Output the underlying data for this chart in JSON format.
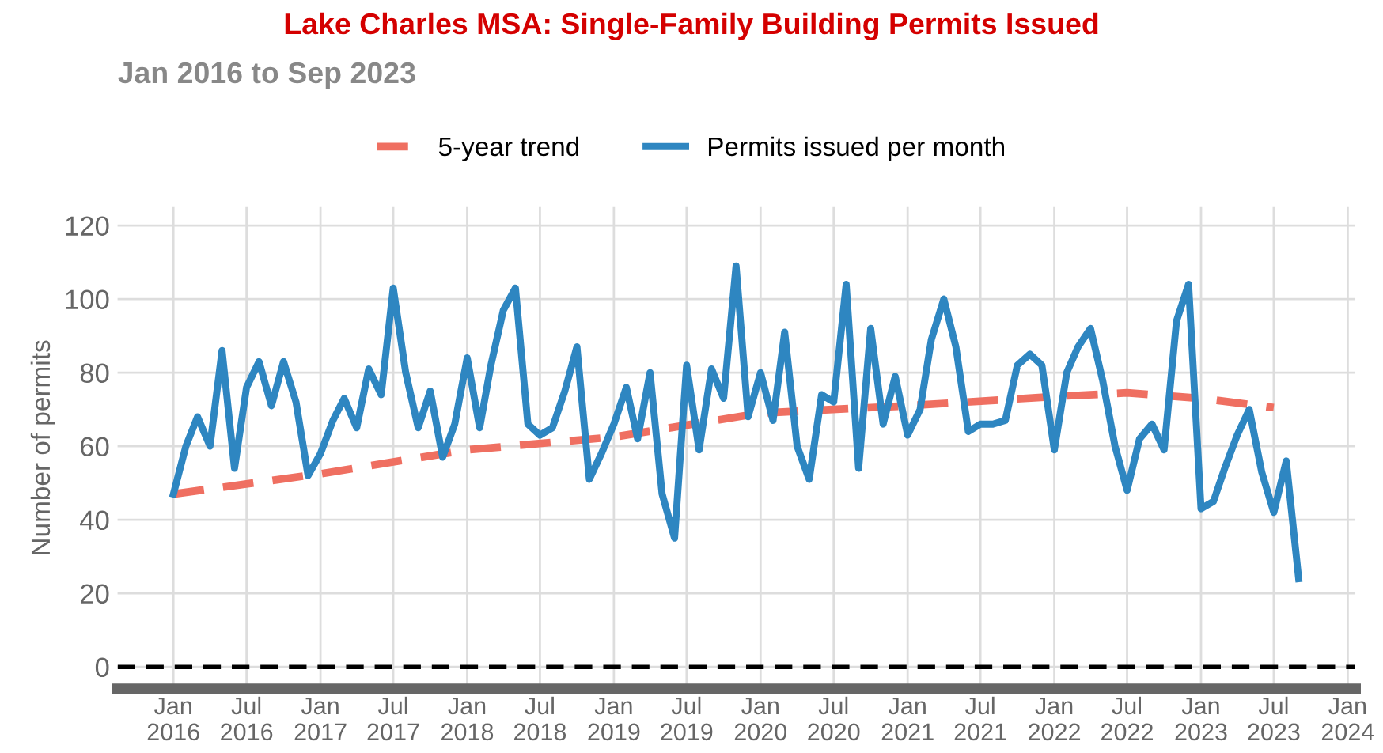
{
  "chart_data": {
    "type": "line",
    "title": "Lake Charles MSA: Single-Family Building Permits Issued",
    "subtitle": "Jan 2016 to Sep 2023",
    "ylabel": "Number of permits",
    "series": [
      {
        "name": "5-year trend",
        "color": "#ef6f61",
        "line_style": "dashed",
        "x": [
          "2016-01",
          "2017-01",
          "2018-01",
          "2019-01",
          "2020-01",
          "2021-01",
          "2022-01",
          "2022-07",
          "2023-01",
          "2023-07"
        ],
        "values": [
          47,
          52.5,
          59,
          62.5,
          69,
          71,
          73.5,
          74.5,
          73,
          70.5
        ]
      },
      {
        "name": "Permits issued per month",
        "color": "#2e86c1",
        "line_style": "solid",
        "x": [
          "2016-01",
          "2016-02",
          "2016-03",
          "2016-04",
          "2016-05",
          "2016-06",
          "2016-07",
          "2016-08",
          "2016-09",
          "2016-10",
          "2016-11",
          "2016-12",
          "2017-01",
          "2017-02",
          "2017-03",
          "2017-04",
          "2017-05",
          "2017-06",
          "2017-07",
          "2017-08",
          "2017-09",
          "2017-10",
          "2017-11",
          "2017-12",
          "2018-01",
          "2018-02",
          "2018-03",
          "2018-04",
          "2018-05",
          "2018-06",
          "2018-07",
          "2018-08",
          "2018-09",
          "2018-10",
          "2018-11",
          "2018-12",
          "2019-01",
          "2019-02",
          "2019-03",
          "2019-04",
          "2019-05",
          "2019-06",
          "2019-07",
          "2019-08",
          "2019-09",
          "2019-10",
          "2019-11",
          "2019-12",
          "2020-01",
          "2020-02",
          "2020-03",
          "2020-04",
          "2020-05",
          "2020-06",
          "2020-07",
          "2020-08",
          "2020-09",
          "2020-10",
          "2020-11",
          "2020-12",
          "2021-01",
          "2021-02",
          "2021-03",
          "2021-04",
          "2021-05",
          "2021-06",
          "2021-07",
          "2021-08",
          "2021-09",
          "2021-10",
          "2021-11",
          "2021-12",
          "2022-01",
          "2022-02",
          "2022-03",
          "2022-04",
          "2022-05",
          "2022-06",
          "2022-07",
          "2022-08",
          "2022-09",
          "2022-10",
          "2022-11",
          "2022-12",
          "2023-01",
          "2023-02",
          "2023-03",
          "2023-04",
          "2023-05",
          "2023-06",
          "2023-07",
          "2023-08",
          "2023-09"
        ],
        "values": [
          47,
          60,
          68,
          60,
          86,
          54,
          76,
          83,
          71,
          83,
          72,
          52,
          58,
          67,
          73,
          65,
          81,
          74,
          103,
          80,
          65,
          75,
          57,
          66,
          84,
          65,
          82,
          97,
          103,
          66,
          63,
          65,
          75,
          87,
          51,
          58,
          66,
          76,
          62,
          80,
          47,
          35,
          82,
          59,
          81,
          73,
          109,
          68,
          80,
          67,
          91,
          60,
          51,
          74,
          72,
          104,
          54,
          92,
          66,
          79,
          63,
          70,
          89,
          100,
          87,
          64,
          66,
          66,
          67,
          82,
          85,
          82,
          59,
          80,
          87,
          92,
          78,
          60,
          48,
          62,
          66,
          59,
          94,
          104,
          43,
          45,
          54,
          63,
          70,
          53,
          42,
          56,
          24
        ]
      }
    ],
    "xlim": [
      "2015-08-15",
      "2024-01-20"
    ],
    "ylim": [
      -6,
      125
    ],
    "xticks": [
      {
        "value": "2016-01",
        "label": "Jan\n2016"
      },
      {
        "value": "2016-07",
        "label": "Jul\n2016"
      },
      {
        "value": "2017-01",
        "label": "Jan\n2017"
      },
      {
        "value": "2017-07",
        "label": "Jul\n2017"
      },
      {
        "value": "2018-01",
        "label": "Jan\n2018"
      },
      {
        "value": "2018-07",
        "label": "Jul\n2018"
      },
      {
        "value": "2019-01",
        "label": "Jan\n2019"
      },
      {
        "value": "2019-07",
        "label": "Jul\n2019"
      },
      {
        "value": "2020-01",
        "label": "Jan\n2020"
      },
      {
        "value": "2020-07",
        "label": "Jul\n2020"
      },
      {
        "value": "2021-01",
        "label": "Jan\n2021"
      },
      {
        "value": "2021-07",
        "label": "Jul\n2021"
      },
      {
        "value": "2022-01",
        "label": "Jan\n2022"
      },
      {
        "value": "2022-07",
        "label": "Jul\n2022"
      },
      {
        "value": "2023-01",
        "label": "Jan\n2023"
      },
      {
        "value": "2023-07",
        "label": "Jul\n2023"
      },
      {
        "value": "2024-01",
        "label": "Jan\n2024"
      }
    ],
    "yticks": [
      0,
      20,
      40,
      60,
      80,
      100,
      120
    ],
    "ref_lines": [
      {
        "axis": "y",
        "value": 0,
        "color": "#000000",
        "line_style": "dashed"
      }
    ],
    "grid": true,
    "legend": "top",
    "marker": "none"
  }
}
